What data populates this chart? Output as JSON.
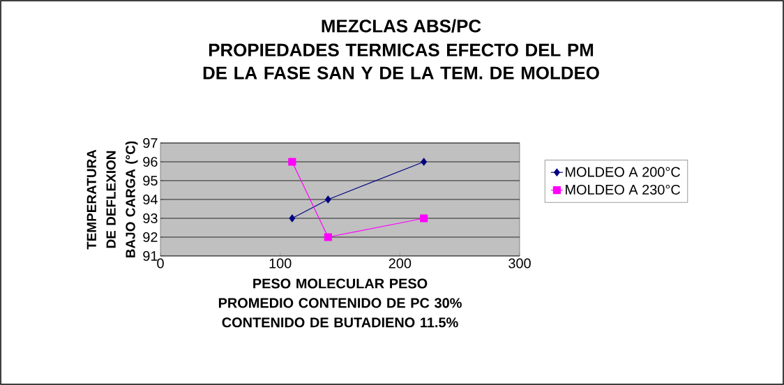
{
  "chart_data": {
    "type": "line",
    "title": "MEZCLAS ABS/PC",
    "subtitle": "PROPIEDADES TERMICAS EFECTO DEL PM DE LA FASE SAN Y DE LA TEM. DE MOLDEO",
    "xlabel": "PESO MOLECULAR PESO PROMEDIO CONTENIDO DE PC 30% CONTENIDO DE BUTADIENO 11.5%",
    "ylabel": "TEMPERATURA DE DEFLEXION BAJO CARGA (°C)",
    "series": [
      {
        "name": "MOLDEO A 200°C",
        "color": "#000080",
        "marker": "diamond",
        "x": [
          110,
          140,
          220
        ],
        "values": [
          93,
          94,
          96
        ]
      },
      {
        "name": "MOLDEO A 230°C",
        "color": "#ff00ff",
        "marker": "square",
        "x": [
          110,
          140,
          220
        ],
        "values": [
          96,
          92,
          93
        ]
      }
    ],
    "xlim": [
      0,
      300
    ],
    "xticks": [
      0,
      100,
      200,
      300
    ],
    "ylim": [
      91,
      97
    ],
    "yticks": [
      91,
      92,
      93,
      94,
      95,
      96,
      97
    ],
    "grid": "y",
    "legend": "right",
    "line_style": "solid"
  }
}
